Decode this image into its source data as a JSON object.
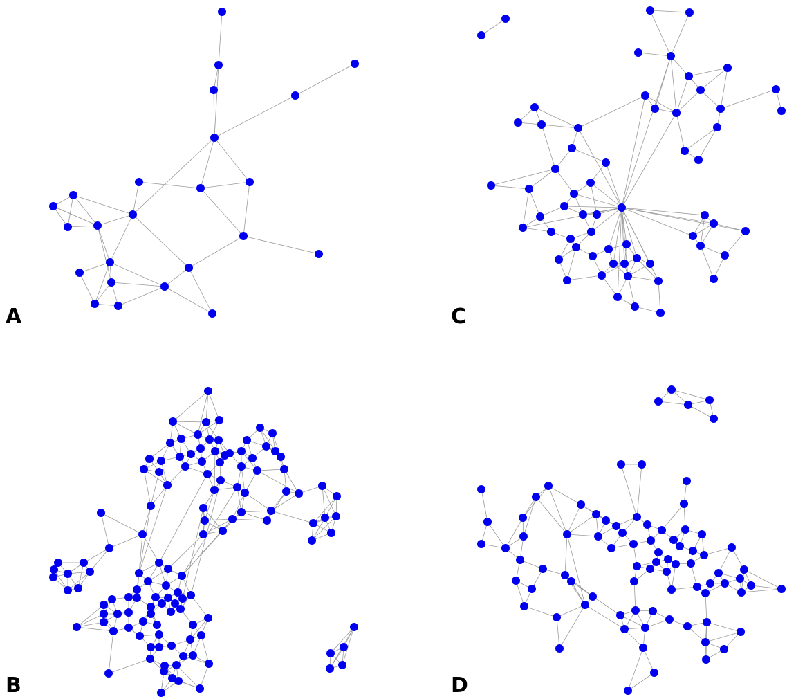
{
  "node_color": "#0000ee",
  "edge_color": "#9a9a9a",
  "background": "#ffffff",
  "panels": [
    {
      "label": "A"
    },
    {
      "label": "B"
    },
    {
      "label": "C"
    },
    {
      "label": "D"
    }
  ]
}
